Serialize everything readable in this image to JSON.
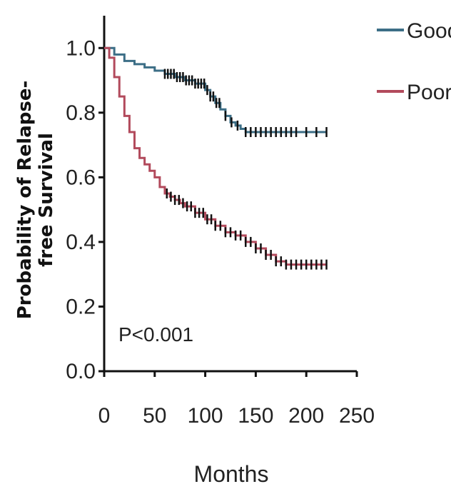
{
  "chart_data": {
    "type": "line",
    "title": "",
    "xlabel": "Months",
    "ylabel_line1": "Probability of Relapse-",
    "ylabel_line2": "free Survival",
    "xlim": [
      0,
      250
    ],
    "ylim": [
      0,
      1.1
    ],
    "x_ticks": [
      0,
      50,
      100,
      150,
      200,
      250
    ],
    "x_tick_labels": [
      "0",
      "50",
      "100",
      "150",
      "200",
      "250"
    ],
    "y_ticks": [
      0,
      0.2,
      0.4,
      0.6,
      0.8,
      1.0
    ],
    "y_tick_labels": [
      "0.0",
      "0.2",
      "0.4",
      "0.6",
      "0.8",
      "1.0"
    ],
    "grid": false,
    "legend_position": "top-right",
    "annotation": "P<0.001",
    "series": [
      {
        "name": "Good",
        "color": "#3c6e86",
        "x": [
          0,
          10,
          20,
          30,
          40,
          50,
          60,
          70,
          80,
          90,
          100,
          105,
          110,
          115,
          120,
          125,
          130,
          135,
          140,
          145,
          150,
          160,
          170,
          180,
          190,
          200,
          210,
          220
        ],
        "y": [
          1.0,
          0.98,
          0.96,
          0.95,
          0.94,
          0.93,
          0.92,
          0.91,
          0.9,
          0.89,
          0.87,
          0.85,
          0.83,
          0.81,
          0.79,
          0.77,
          0.76,
          0.75,
          0.74,
          0.74,
          0.74,
          0.74,
          0.74,
          0.74,
          0.74,
          0.74,
          0.74,
          0.74
        ],
        "censor_x": [
          60,
          63,
          66,
          69,
          72,
          75,
          78,
          81,
          84,
          87,
          90,
          93,
          96,
          99,
          102,
          105,
          108,
          111,
          114,
          120,
          126,
          132,
          140,
          145,
          150,
          155,
          160,
          165,
          170,
          175,
          180,
          185,
          190,
          200,
          210,
          220
        ]
      },
      {
        "name": "Poor",
        "color": "#b24a5c",
        "x": [
          0,
          5,
          10,
          15,
          20,
          25,
          30,
          35,
          40,
          45,
          50,
          55,
          60,
          65,
          70,
          75,
          80,
          90,
          100,
          110,
          120,
          130,
          140,
          150,
          160,
          170,
          180,
          190,
          200,
          210,
          220
        ],
        "y": [
          1.0,
          0.97,
          0.91,
          0.85,
          0.79,
          0.74,
          0.69,
          0.66,
          0.64,
          0.62,
          0.6,
          0.57,
          0.55,
          0.54,
          0.53,
          0.52,
          0.51,
          0.49,
          0.47,
          0.45,
          0.43,
          0.42,
          0.4,
          0.38,
          0.36,
          0.34,
          0.33,
          0.33,
          0.33,
          0.33,
          0.33
        ],
        "censor_x": [
          62,
          66,
          70,
          74,
          78,
          82,
          86,
          90,
          94,
          98,
          102,
          106,
          110,
          115,
          120,
          125,
          130,
          135,
          140,
          145,
          150,
          155,
          160,
          165,
          170,
          175,
          180,
          185,
          190,
          195,
          200,
          205,
          210,
          215,
          220
        ]
      }
    ]
  }
}
